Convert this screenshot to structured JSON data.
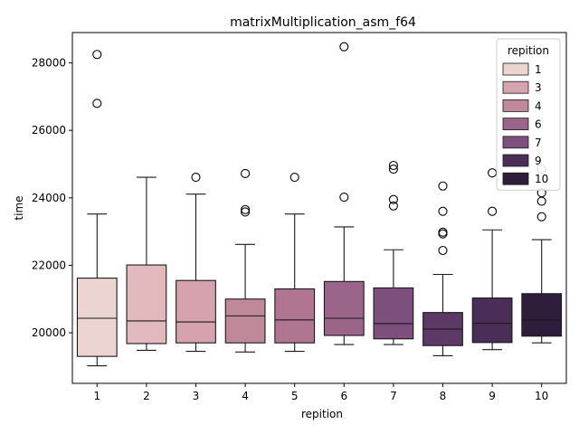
{
  "chart_data": {
    "type": "box",
    "title": "matrixMultiplication_asm_f64",
    "xlabel": "repition",
    "ylabel": "time",
    "ylim": [
      18500,
      28900
    ],
    "yticks": [
      20000,
      22000,
      24000,
      26000,
      28000
    ],
    "categories": [
      "1",
      "2",
      "3",
      "4",
      "5",
      "6",
      "7",
      "8",
      "9",
      "10"
    ],
    "colors": [
      "#ecd4d1",
      "#e2b9bd",
      "#d4a3ad",
      "#c08999",
      "#b07590",
      "#9a6589",
      "#7d4f7d",
      "#5d3966",
      "#4a2e58",
      "#2e1e3b"
    ],
    "boxes": [
      {
        "whisker_low": 19020,
        "q1": 19300,
        "median": 20430,
        "q3": 21620,
        "whisker_high": 23520,
        "outliers": [
          26800,
          28250
        ]
      },
      {
        "whisker_low": 19480,
        "q1": 19680,
        "median": 20350,
        "q3": 22010,
        "whisker_high": 24610,
        "outliers": []
      },
      {
        "whisker_low": 19450,
        "q1": 19700,
        "median": 20320,
        "q3": 21550,
        "whisker_high": 24110,
        "outliers": [
          24610
        ]
      },
      {
        "whisker_low": 19430,
        "q1": 19700,
        "median": 20500,
        "q3": 21000,
        "whisker_high": 22620,
        "outliers": [
          23580,
          23650,
          24720
        ]
      },
      {
        "whisker_low": 19450,
        "q1": 19700,
        "median": 20380,
        "q3": 21300,
        "whisker_high": 23520,
        "outliers": [
          24610
        ]
      },
      {
        "whisker_low": 19650,
        "q1": 19920,
        "median": 20430,
        "q3": 21520,
        "whisker_high": 23140,
        "outliers": [
          24020,
          28480
        ]
      },
      {
        "whisker_low": 19650,
        "q1": 19820,
        "median": 20270,
        "q3": 21330,
        "whisker_high": 22460,
        "outliers": [
          23760,
          23950,
          24850,
          24960
        ]
      },
      {
        "whisker_low": 19320,
        "q1": 19620,
        "median": 20110,
        "q3": 20600,
        "whisker_high": 21730,
        "outliers": [
          22440,
          22930,
          22980,
          23600,
          24350
        ]
      },
      {
        "whisker_low": 19500,
        "q1": 19710,
        "median": 20280,
        "q3": 21030,
        "whisker_high": 23050,
        "outliers": [
          23600,
          24740
        ]
      },
      {
        "whisker_low": 19700,
        "q1": 19900,
        "median": 20380,
        "q3": 21160,
        "whisker_high": 22760,
        "outliers": [
          23440,
          23900,
          24150,
          24850
        ]
      }
    ],
    "legend": {
      "title": "repition",
      "placement": "top-right",
      "entries": [
        {
          "label": "1",
          "color": "#ecd4d1"
        },
        {
          "label": "3",
          "color": "#d4a3ad"
        },
        {
          "label": "4",
          "color": "#c08999"
        },
        {
          "label": "6",
          "color": "#9a6589"
        },
        {
          "label": "7",
          "color": "#7d4f7d"
        },
        {
          "label": "9",
          "color": "#4a2e58"
        },
        {
          "label": "10",
          "color": "#2e1e3b"
        }
      ]
    },
    "grid": false
  }
}
